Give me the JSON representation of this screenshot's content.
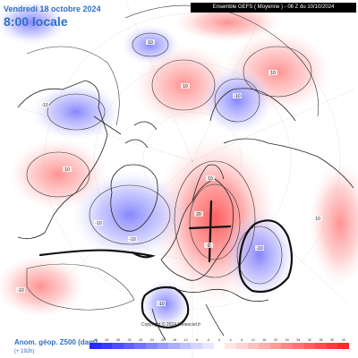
{
  "header": {
    "date_line": "Vendredi 18 octobre 2024",
    "time_line": "8:00 locale",
    "source_line": "Ensemble GEFS ( Moyenne ) - 06 Z du 10/10/2024"
  },
  "footer": {
    "variable": "Anom. géop. Z500 (dam)",
    "lead_time": "(+ 192h)",
    "copyright": "Copyright © 2024 Meteociel.fr"
  },
  "legend": {
    "ticks": [
      "-44",
      "-40",
      "-36",
      "-32",
      "-28",
      "-24",
      "-20",
      "-16",
      "-12",
      "-8",
      "-4",
      "0",
      "4",
      "8",
      "12",
      "16",
      "20",
      "24",
      "28",
      "32",
      "36",
      "40",
      "44"
    ],
    "colors": [
      "#2a2aff",
      "#3a3aff",
      "#4d4dff",
      "#6060ff",
      "#7373ff",
      "#8686ff",
      "#9a9aff",
      "#adadff",
      "#c0c0ff",
      "#d3d3ff",
      "#e6e6ff",
      "#ffffff",
      "#ffe6e6",
      "#ffd3d3",
      "#ffc0c0",
      "#ffadad",
      "#ff9a9a",
      "#ff8686",
      "#ff7373",
      "#ff6060",
      "#ff4d4d",
      "#ff3a3a",
      "#ff2a2a"
    ]
  },
  "contour_labels": [
    {
      "text": "-10"
    },
    {
      "text": "10"
    },
    {
      "text": "10"
    },
    {
      "text": "-10"
    },
    {
      "text": "-10"
    },
    {
      "text": "10"
    },
    {
      "text": "-10"
    },
    {
      "text": "20"
    },
    {
      "text": "10"
    },
    {
      "text": "-10"
    },
    {
      "text": "-10"
    },
    {
      "text": "10"
    },
    {
      "text": "-10"
    },
    {
      "text": "0"
    },
    {
      "text": "10"
    }
  ],
  "colors": {
    "title_blue": "#2e6fc4",
    "positive_anomaly": "#ff8c8c",
    "negative_anomaly": "#8c8cff",
    "annotation_ink": "#111111"
  }
}
